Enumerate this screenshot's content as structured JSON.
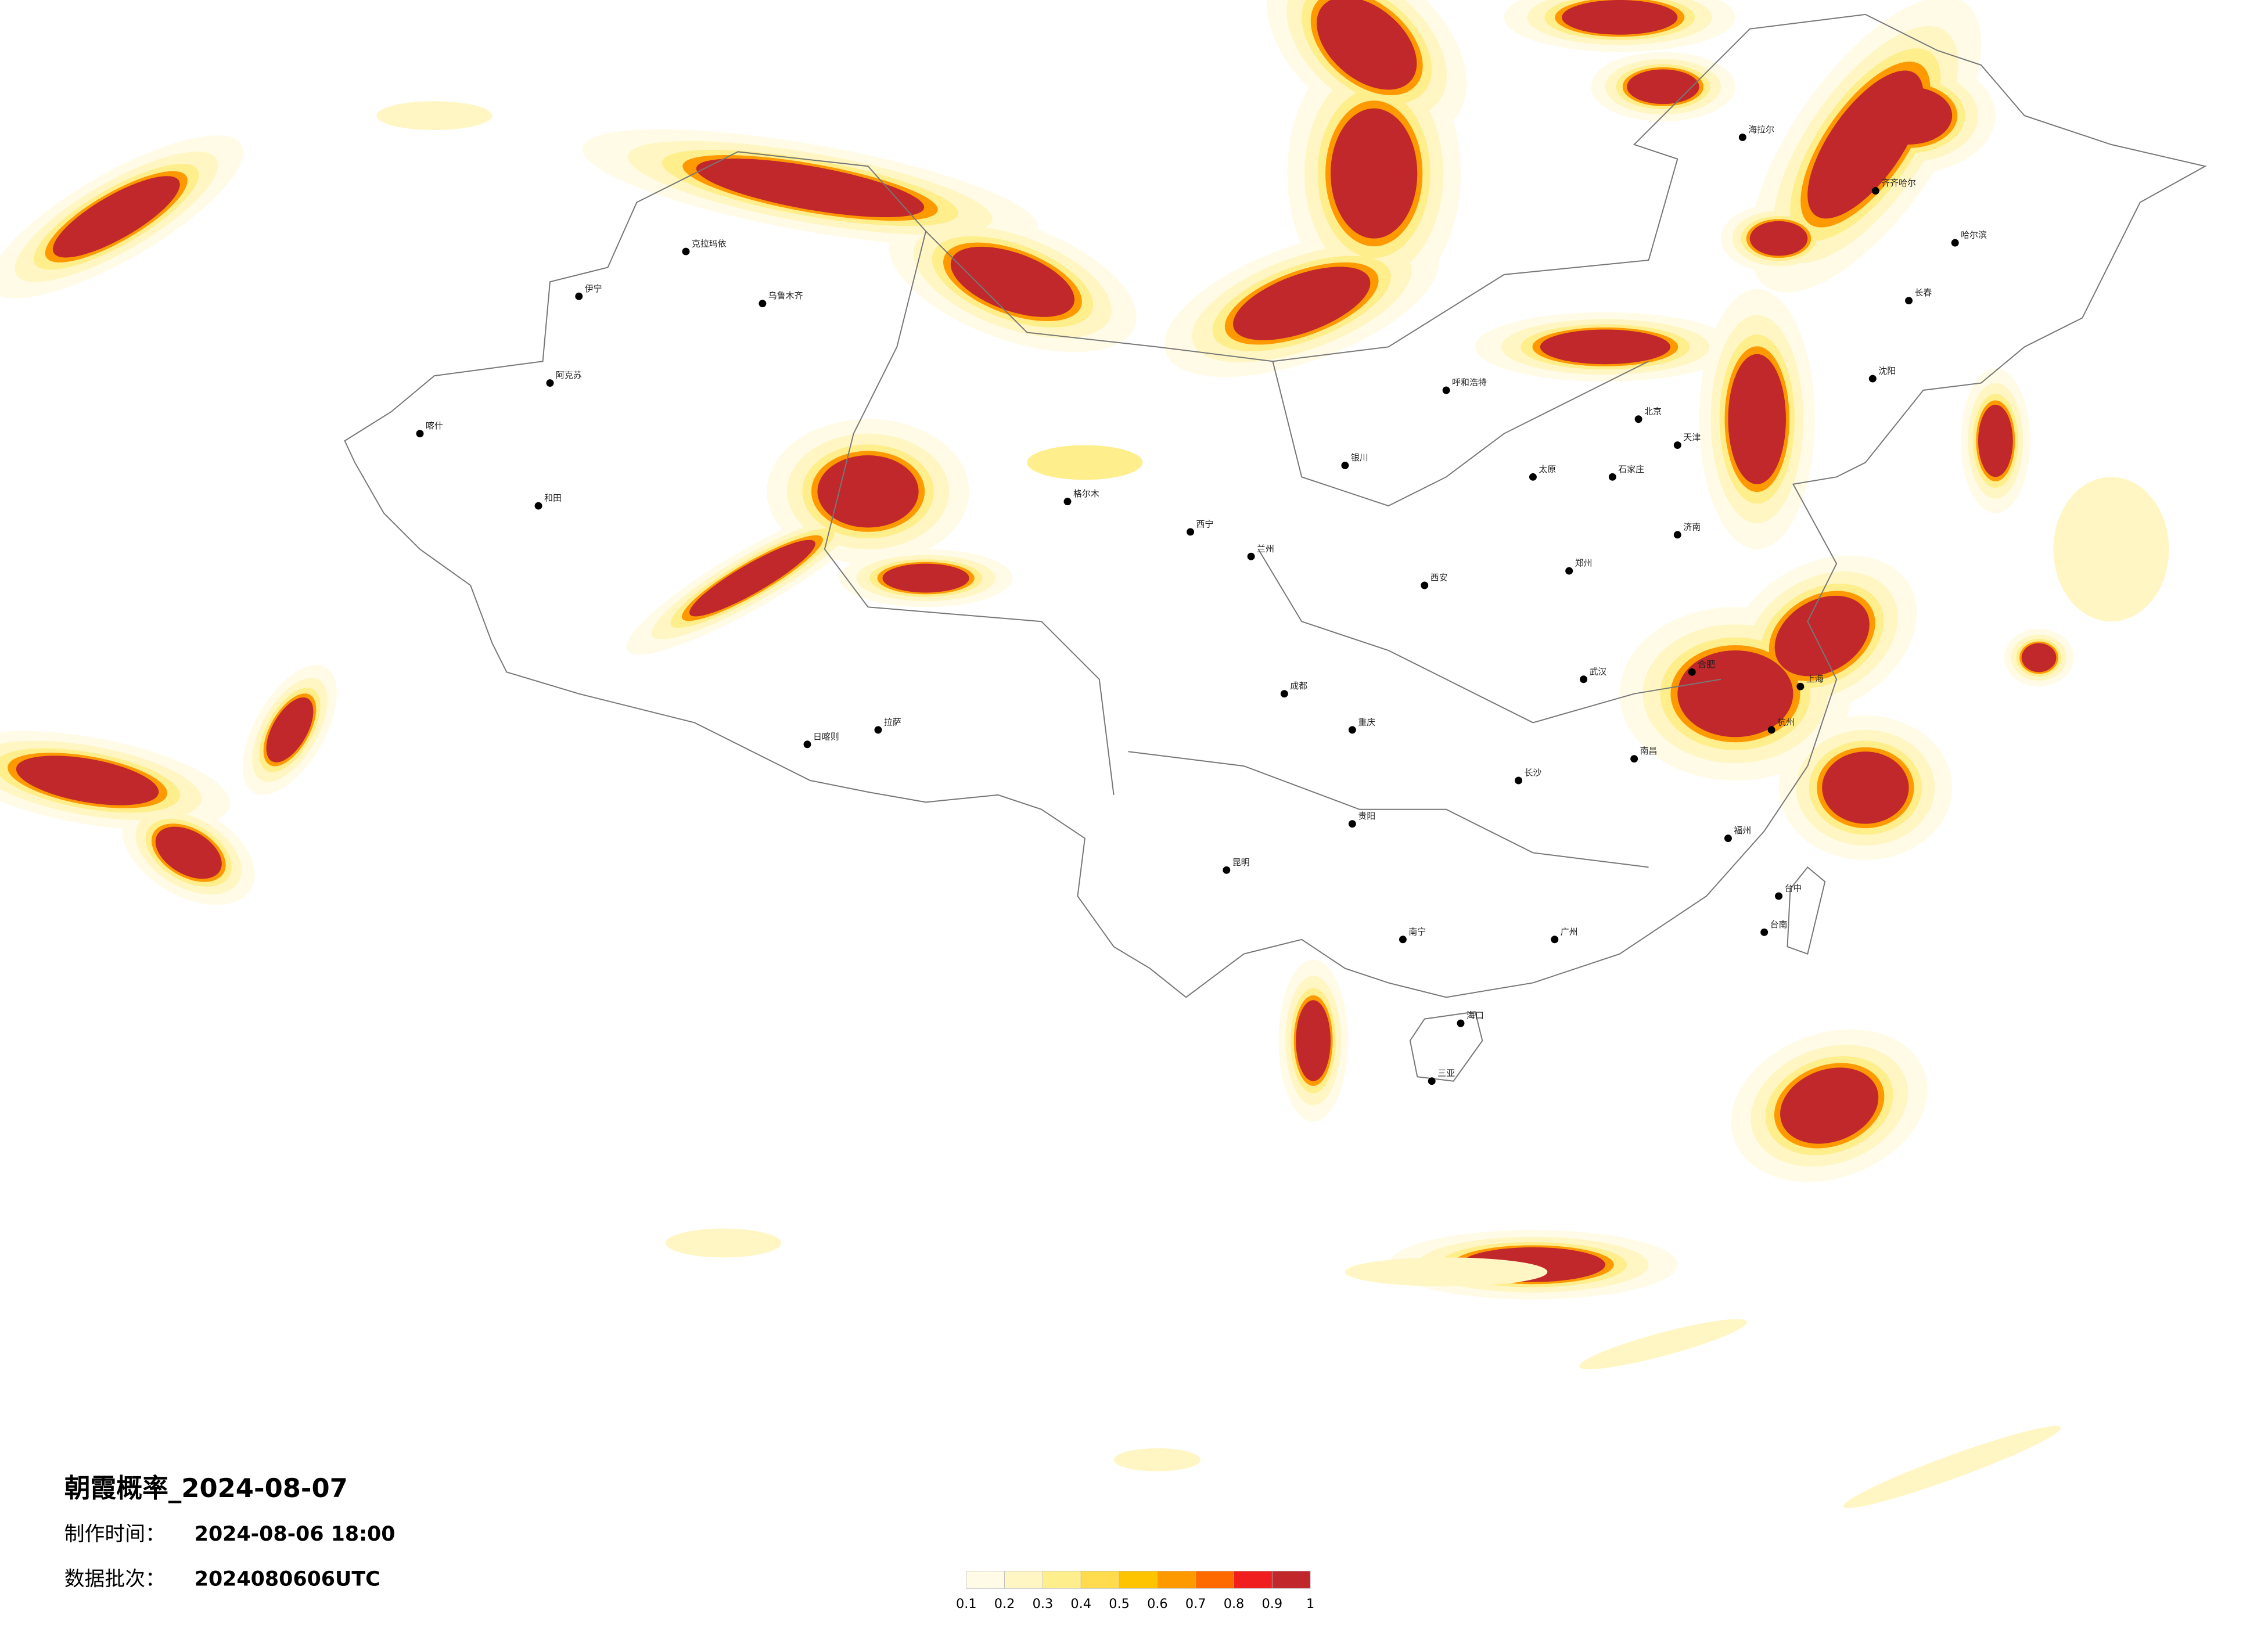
{
  "title": "朝霞概率_2024-08-07",
  "production_time": {
    "label": "制作时间：",
    "value": "2024-08-06 18:00"
  },
  "data_batch": {
    "label": "数据批次：",
    "value": "2024080606UTC"
  },
  "colorbar": {
    "ticks": [
      0.1,
      0.2,
      0.3,
      0.4,
      0.5,
      0.6,
      0.7,
      0.8,
      0.9,
      1
    ],
    "colors": [
      "#fffbe6",
      "#fff6c4",
      "#ffee8c",
      "#ffdb4d",
      "#ffc400",
      "#ff9900",
      "#ff6a00",
      "#f01e1e",
      "#c0282c"
    ]
  },
  "cities": [
    "海拉尔",
    "齐齐哈尔",
    "哈尔滨",
    "长春",
    "沈阳",
    "呼和浩特",
    "北京",
    "天津",
    "石家庄",
    "太原",
    "济南",
    "郑州",
    "西安",
    "兰州",
    "西宁",
    "银川",
    "乌鲁木齐",
    "克拉玛依",
    "伊宁",
    "阿克苏",
    "和田",
    "喀什",
    "拉萨",
    "日喀则",
    "格尔木",
    "成都",
    "重庆",
    "贵阳",
    "昆明",
    "南宁",
    "广州",
    "长沙",
    "武汉",
    "南昌",
    "福州",
    "杭州",
    "合肥",
    "上海",
    "台中",
    "台南",
    "海口",
    "三亚"
  ]
}
